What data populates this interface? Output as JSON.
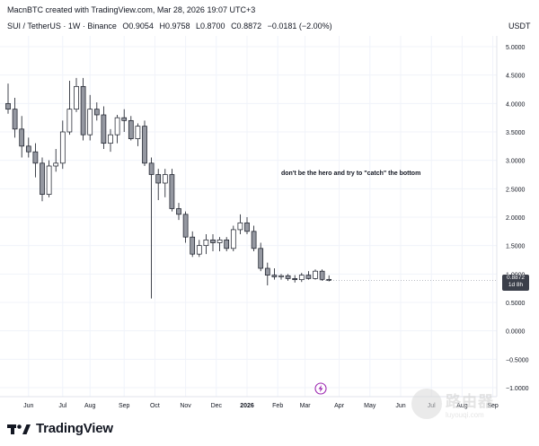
{
  "header": {
    "creator_line": "MacnBTC created with TradingView.com, Mar 28, 2026 19:07 UTC+3",
    "symbol_line": "SUI / TetherUS · 1W · Binance",
    "open": "O0.9054",
    "high": "H0.9758",
    "low": "L0.8700",
    "close": "C0.8872",
    "change": "−0.0181 (−2.00%)",
    "currency": "USDT"
  },
  "annotation": "don't be the hero and try to \"catch\" the bottom",
  "price_badge": {
    "price": "0.8872",
    "countdown": "1d 8h"
  },
  "brand": {
    "name": "TradingView"
  },
  "watermark": {
    "big": "路由器",
    "small": "luyouqi.com"
  },
  "colors": {
    "bull": "#ffffff",
    "bear": "#9598a1",
    "outline": "#131722",
    "grid": "#f0f3fa",
    "axis_text": "#131722"
  },
  "chart_data": {
    "type": "candlestick",
    "timeframe": "1W",
    "y_ticks": [
      5.0,
      4.5,
      4.0,
      3.5,
      3.0,
      2.5,
      2.0,
      1.5,
      1.0,
      0.5,
      0.0,
      -0.5,
      -1.0
    ],
    "y_tick_labels": [
      "5.0000",
      "4.5000",
      "4.0000",
      "3.5000",
      "3.0000",
      "2.5000",
      "2.0000",
      "1.5000",
      "1.0000",
      "0.5000",
      "0.0000",
      "−0.5000",
      "−1.0000"
    ],
    "ylim": [
      -1.1,
      5.55
    ],
    "x_ticks": [
      "Jun",
      "Jul",
      "Aug",
      "Sep",
      "Oct",
      "Nov",
      "Dec",
      "2026",
      "Feb",
      "Mar",
      "Apr",
      "May",
      "Jun",
      "Jul",
      "Aug",
      "Sep"
    ],
    "x_tick_index": [
      3,
      8,
      12,
      17,
      21.5,
      26,
      30.5,
      35,
      39.5,
      43.5,
      48.5,
      53,
      57.5,
      62,
      66.5,
      71
    ],
    "candles": [
      {
        "o": 4.0,
        "h": 4.35,
        "l": 3.82,
        "c": 3.9
      },
      {
        "o": 3.9,
        "h": 4.1,
        "l": 3.4,
        "c": 3.55
      },
      {
        "o": 3.55,
        "h": 3.78,
        "l": 3.05,
        "c": 3.25
      },
      {
        "o": 3.25,
        "h": 3.4,
        "l": 3.05,
        "c": 3.15
      },
      {
        "o": 3.15,
        "h": 3.3,
        "l": 2.7,
        "c": 2.95
      },
      {
        "o": 2.95,
        "h": 3.05,
        "l": 2.28,
        "c": 2.4
      },
      {
        "o": 2.4,
        "h": 3.0,
        "l": 2.35,
        "c": 2.9
      },
      {
        "o": 2.9,
        "h": 3.2,
        "l": 2.8,
        "c": 2.95
      },
      {
        "o": 2.95,
        "h": 3.7,
        "l": 2.85,
        "c": 3.5
      },
      {
        "o": 3.5,
        "h": 4.4,
        "l": 3.45,
        "c": 3.9
      },
      {
        "o": 3.9,
        "h": 4.45,
        "l": 3.85,
        "c": 4.3
      },
      {
        "o": 4.3,
        "h": 4.45,
        "l": 3.35,
        "c": 3.45
      },
      {
        "o": 3.45,
        "h": 4.15,
        "l": 3.35,
        "c": 3.9
      },
      {
        "o": 3.9,
        "h": 4.02,
        "l": 3.7,
        "c": 3.8
      },
      {
        "o": 3.8,
        "h": 3.95,
        "l": 3.2,
        "c": 3.3
      },
      {
        "o": 3.3,
        "h": 3.55,
        "l": 3.15,
        "c": 3.45
      },
      {
        "o": 3.45,
        "h": 3.8,
        "l": 3.3,
        "c": 3.75
      },
      {
        "o": 3.75,
        "h": 3.9,
        "l": 3.5,
        "c": 3.7
      },
      {
        "o": 3.7,
        "h": 3.78,
        "l": 3.35,
        "c": 3.38
      },
      {
        "o": 3.38,
        "h": 3.65,
        "l": 3.25,
        "c": 3.6
      },
      {
        "o": 3.6,
        "h": 3.7,
        "l": 2.9,
        "c": 2.95
      },
      {
        "o": 2.95,
        "h": 3.05,
        "l": 0.57,
        "c": 2.75
      },
      {
        "o": 2.75,
        "h": 2.85,
        "l": 2.3,
        "c": 2.6
      },
      {
        "o": 2.6,
        "h": 2.85,
        "l": 2.35,
        "c": 2.75
      },
      {
        "o": 2.75,
        "h": 2.85,
        "l": 2.1,
        "c": 2.15
      },
      {
        "o": 2.15,
        "h": 2.25,
        "l": 1.95,
        "c": 2.05
      },
      {
        "o": 2.05,
        "h": 2.1,
        "l": 1.55,
        "c": 1.65
      },
      {
        "o": 1.65,
        "h": 1.75,
        "l": 1.3,
        "c": 1.35
      },
      {
        "o": 1.35,
        "h": 1.6,
        "l": 1.3,
        "c": 1.5
      },
      {
        "o": 1.5,
        "h": 1.7,
        "l": 1.35,
        "c": 1.6
      },
      {
        "o": 1.6,
        "h": 1.7,
        "l": 1.4,
        "c": 1.55
      },
      {
        "o": 1.55,
        "h": 1.65,
        "l": 1.4,
        "c": 1.6
      },
      {
        "o": 1.6,
        "h": 1.65,
        "l": 1.4,
        "c": 1.45
      },
      {
        "o": 1.45,
        "h": 1.85,
        "l": 1.4,
        "c": 1.78
      },
      {
        "o": 1.78,
        "h": 2.05,
        "l": 1.7,
        "c": 1.9
      },
      {
        "o": 1.9,
        "h": 2.0,
        "l": 1.7,
        "c": 1.75
      },
      {
        "o": 1.75,
        "h": 1.85,
        "l": 1.4,
        "c": 1.45
      },
      {
        "o": 1.45,
        "h": 1.55,
        "l": 1.05,
        "c": 1.1
      },
      {
        "o": 1.1,
        "h": 1.2,
        "l": 0.8,
        "c": 0.98
      },
      {
        "o": 0.98,
        "h": 1.1,
        "l": 0.9,
        "c": 0.95
      },
      {
        "o": 0.95,
        "h": 1.0,
        "l": 0.9,
        "c": 0.97
      },
      {
        "o": 0.97,
        "h": 1.0,
        "l": 0.88,
        "c": 0.92
      },
      {
        "o": 0.92,
        "h": 0.98,
        "l": 0.85,
        "c": 0.9
      },
      {
        "o": 0.9,
        "h": 1.02,
        "l": 0.86,
        "c": 0.98
      },
      {
        "o": 0.98,
        "h": 1.05,
        "l": 0.9,
        "c": 0.92
      },
      {
        "o": 0.92,
        "h": 1.08,
        "l": 0.9,
        "c": 1.05
      },
      {
        "o": 1.05,
        "h": 1.08,
        "l": 0.88,
        "c": 0.9054
      },
      {
        "o": 0.9054,
        "h": 0.9758,
        "l": 0.87,
        "c": 0.8872
      }
    ],
    "grid": true,
    "last_price": 0.8872
  }
}
